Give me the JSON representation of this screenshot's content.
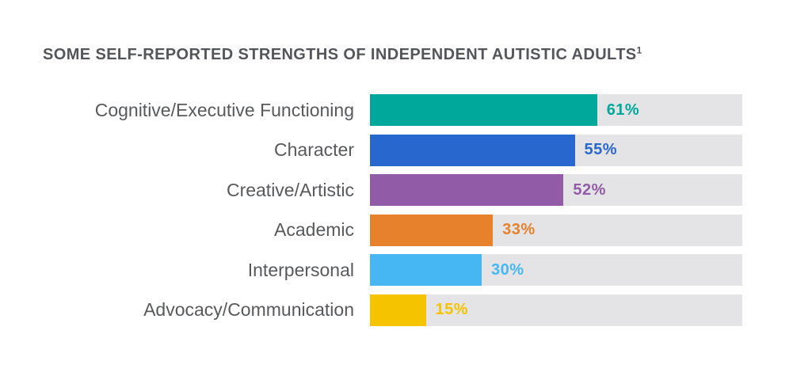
{
  "page": {
    "background": "#FFFFFF"
  },
  "title": {
    "text": "SOME SELF-REPORTED STRENGTHS OF INDEPENDENT AUTISTIC ADULTS",
    "superscript": "1",
    "color": "#54565A"
  },
  "chart_data": {
    "type": "bar",
    "orientation": "horizontal",
    "title": "SOME SELF-REPORTED STRENGTHS OF INDEPENDENT AUTISTIC ADULTS",
    "title_footnote_marker": "1",
    "categories": [
      "Cognitive/Executive Functioning",
      "Character",
      "Creative/Artistic",
      "Academic",
      "Interpersonal",
      "Advocacy/Communication"
    ],
    "values": [
      61,
      55,
      52,
      33,
      30,
      15
    ],
    "value_labels": [
      "61%",
      "55%",
      "52%",
      "33%",
      "30%",
      "15%"
    ],
    "colors": [
      "#00A79B",
      "#2867CD",
      "#915BA7",
      "#E8812C",
      "#47B7F3",
      "#F5C300"
    ],
    "track_color": "#E4E4E6",
    "category_label_color": "#58595B",
    "xlim": [
      0,
      100
    ],
    "unit": "%",
    "grid": false,
    "legend": false,
    "value_label_position": "outside-end-of-fill"
  }
}
